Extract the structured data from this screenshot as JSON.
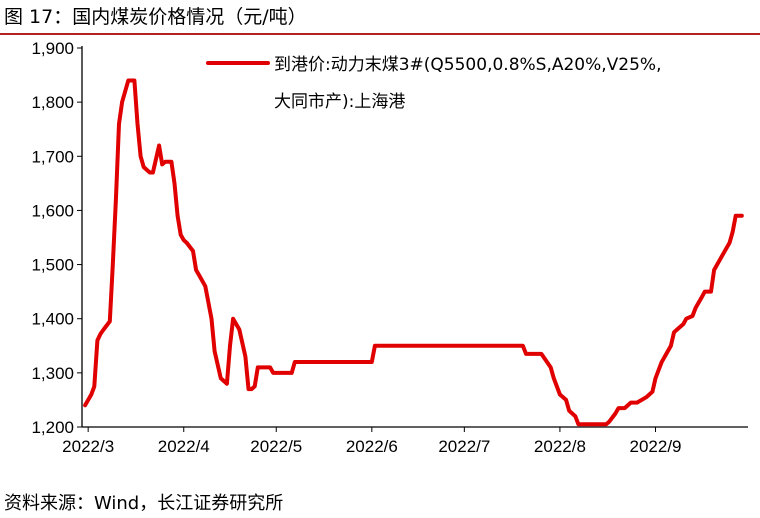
{
  "figure": {
    "title": "图 17：国内煤炭价格情况（元/吨）",
    "source": "资料来源：Wind，长江证券研究所"
  },
  "colors": {
    "series": "#e00000",
    "axis": "#000000"
  },
  "chart_data": {
    "type": "line",
    "title": "",
    "xlabel": "",
    "ylabel": "",
    "ylim": [
      1200,
      1900
    ],
    "yticks": [
      1200,
      1300,
      1400,
      1500,
      1600,
      1700,
      1800,
      1900
    ],
    "ytick_labels": [
      "1,200",
      "1,300",
      "1,400",
      "1,500",
      "1,600",
      "1,700",
      "1,800",
      "1,900"
    ],
    "xlim": [
      "2022-02-27",
      "2022-10-01"
    ],
    "xticks": [
      "2022-03-01",
      "2022-04-01",
      "2022-05-01",
      "2022-06-01",
      "2022-07-01",
      "2022-08-01",
      "2022-09-01"
    ],
    "xtick_labels": [
      "2022/3",
      "2022/4",
      "2022/5",
      "2022/6",
      "2022/7",
      "2022/8",
      "2022/9"
    ],
    "grid": false,
    "legend": {
      "placement": "top-right",
      "lines": [
        "到港价:动力末煤3#(Q5500,0.8%S,A20%,V25%,",
        "大同市产):上海港"
      ]
    },
    "series": [
      {
        "name": "到港价:动力末煤3#(Q5500,0.8%S,A20%,V25%,大同市产):上海港",
        "x": [
          "2022-02-28",
          "2022-03-02",
          "2022-03-03",
          "2022-03-04",
          "2022-03-05",
          "2022-03-06",
          "2022-03-08",
          "2022-03-09",
          "2022-03-10",
          "2022-03-11",
          "2022-03-12",
          "2022-03-14",
          "2022-03-16",
          "2022-03-17",
          "2022-03-18",
          "2022-03-19",
          "2022-03-21",
          "2022-03-22",
          "2022-03-24",
          "2022-03-25",
          "2022-03-26",
          "2022-03-27",
          "2022-03-28",
          "2022-03-29",
          "2022-03-30",
          "2022-03-31",
          "2022-04-01",
          "2022-04-02",
          "2022-04-04",
          "2022-04-05",
          "2022-04-06",
          "2022-04-08",
          "2022-04-10",
          "2022-04-11",
          "2022-04-13",
          "2022-04-15",
          "2022-04-16",
          "2022-04-17",
          "2022-04-19",
          "2022-04-21",
          "2022-04-22",
          "2022-04-23",
          "2022-04-24",
          "2022-04-25",
          "2022-04-27",
          "2022-04-28",
          "2022-04-29",
          "2022-04-30",
          "2022-05-01",
          "2022-05-06",
          "2022-05-07",
          "2022-05-10",
          "2022-05-11",
          "2022-05-12",
          "2022-05-13",
          "2022-05-31",
          "2022-06-01",
          "2022-06-02",
          "2022-06-03",
          "2022-06-30",
          "2022-07-20",
          "2022-07-21",
          "2022-07-22",
          "2022-07-25",
          "2022-07-26",
          "2022-07-29",
          "2022-07-30",
          "2022-08-01",
          "2022-08-03",
          "2022-08-04",
          "2022-08-06",
          "2022-08-07",
          "2022-08-08",
          "2022-08-16",
          "2022-08-17",
          "2022-08-19",
          "2022-08-20",
          "2022-08-22",
          "2022-08-24",
          "2022-08-26",
          "2022-08-29",
          "2022-08-31",
          "2022-09-01",
          "2022-09-02",
          "2022-09-03",
          "2022-09-06",
          "2022-09-07",
          "2022-09-08",
          "2022-09-10",
          "2022-09-11",
          "2022-09-13",
          "2022-09-14",
          "2022-09-16",
          "2022-09-17",
          "2022-09-19",
          "2022-09-20",
          "2022-09-23",
          "2022-09-24",
          "2022-09-25",
          "2022-09-26",
          "2022-09-27",
          "2022-09-29"
        ],
        "values": [
          1240,
          1260,
          1275,
          1360,
          1372,
          1380,
          1395,
          1500,
          1620,
          1760,
          1800,
          1840,
          1840,
          1760,
          1700,
          1680,
          1670,
          1670,
          1720,
          1685,
          1690,
          1690,
          1690,
          1650,
          1590,
          1555,
          1545,
          1540,
          1525,
          1490,
          1480,
          1460,
          1400,
          1340,
          1290,
          1280,
          1350,
          1400,
          1380,
          1330,
          1270,
          1270,
          1275,
          1310,
          1310,
          1310,
          1310,
          1300,
          1300,
          1300,
          1320,
          1320,
          1320,
          1320,
          1320,
          1320,
          1320,
          1350,
          1350,
          1350,
          1350,
          1335,
          1335,
          1335,
          1335,
          1310,
          1290,
          1260,
          1250,
          1230,
          1220,
          1205,
          1205,
          1205,
          1210,
          1225,
          1235,
          1235,
          1245,
          1245,
          1255,
          1265,
          1290,
          1305,
          1320,
          1350,
          1375,
          1380,
          1390,
          1400,
          1405,
          1420,
          1440,
          1450,
          1450,
          1490,
          1520,
          1530,
          1540,
          1560,
          1590,
          1590
        ]
      }
    ]
  }
}
